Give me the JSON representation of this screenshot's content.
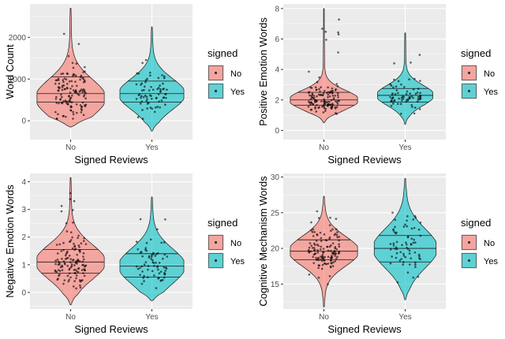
{
  "colors": {
    "panel_bg": "#ebebeb",
    "grid_major": "#ffffff",
    "no_fill": "#f8766d",
    "yes_fill": "#00bfc4",
    "outline": "#1a1a1a",
    "point": "#000000",
    "axis_text": "#4d4d4d",
    "title_text": "#000000"
  },
  "chart_data": [
    {
      "type": "violin",
      "panel": "top-left",
      "xlabel": "Signed Reviews",
      "ylabel": "Word Count",
      "categories": [
        "No",
        "Yes"
      ],
      "ylim": [
        -450,
        2800
      ],
      "yticks": [
        0,
        1000,
        2000
      ],
      "legend": {
        "title": "signed",
        "entries": [
          "No",
          "Yes"
        ]
      },
      "series": [
        {
          "name": "No",
          "min": -150,
          "max": 2700,
          "quantiles": [
            450,
            650,
            1050
          ],
          "mode": 550,
          "width": 1.0,
          "n": 130,
          "seed": 11,
          "jitter_min": 50,
          "jitter_max": 2300
        },
        {
          "name": "Yes",
          "min": -250,
          "max": 2250,
          "quantiles": [
            450,
            650,
            950
          ],
          "mode": 640,
          "width": 0.95,
          "n": 70,
          "seed": 12,
          "jitter_min": 0,
          "jitter_max": 1700
        }
      ]
    },
    {
      "type": "violin",
      "panel": "top-right",
      "xlabel": "Signed Reviews",
      "ylabel": "Positive Emotion Words",
      "categories": [
        "No",
        "Yes"
      ],
      "ylim": [
        -0.6,
        8.3
      ],
      "yticks": [
        0,
        2,
        4,
        6,
        8
      ],
      "legend": {
        "title": "signed",
        "entries": [
          "No",
          "Yes"
        ]
      },
      "series": [
        {
          "name": "No",
          "min": 0.5,
          "max": 8.0,
          "quantiles": [
            1.65,
            2.0,
            2.5
          ],
          "mode": 2.0,
          "width": 1.0,
          "n": 130,
          "seed": 21,
          "jitter_min": 0.8,
          "jitter_max": 7.4
        },
        {
          "name": "Yes",
          "min": 0.4,
          "max": 6.4,
          "quantiles": [
            1.85,
            2.3,
            2.75
          ],
          "mode": 2.3,
          "width": 0.82,
          "n": 70,
          "seed": 22,
          "jitter_min": 0.8,
          "jitter_max": 5.6
        }
      ]
    },
    {
      "type": "violin",
      "panel": "bottom-left",
      "xlabel": "Signed Reviews",
      "ylabel": "Negative Emotion Words",
      "categories": [
        "No",
        "Yes"
      ],
      "ylim": [
        -0.6,
        4.3
      ],
      "yticks": [
        0,
        1,
        2,
        3,
        4
      ],
      "legend": {
        "title": "signed",
        "entries": [
          "No",
          "Yes"
        ]
      },
      "series": [
        {
          "name": "No",
          "min": -0.45,
          "max": 4.15,
          "quantiles": [
            0.7,
            1.1,
            1.55
          ],
          "mode": 1.1,
          "width": 1.0,
          "n": 130,
          "seed": 31,
          "jitter_min": 0.0,
          "jitter_max": 3.6
        },
        {
          "name": "Yes",
          "min": -0.3,
          "max": 3.45,
          "quantiles": [
            0.55,
            0.95,
            1.4
          ],
          "mode": 0.95,
          "width": 0.95,
          "n": 70,
          "seed": 32,
          "jitter_min": 0.1,
          "jitter_max": 2.7
        }
      ]
    },
    {
      "type": "violin",
      "panel": "bottom-right",
      "xlabel": "Signed Reviews",
      "ylabel": "Cognitive Mechanism Words",
      "categories": [
        "No",
        "Yes"
      ],
      "ylim": [
        11.5,
        30.5
      ],
      "yticks": [
        15,
        20,
        25,
        30
      ],
      "legend": {
        "title": "signed",
        "entries": [
          "No",
          "Yes"
        ]
      },
      "series": [
        {
          "name": "No",
          "min": 11.8,
          "max": 27.3,
          "quantiles": [
            18.4,
            19.6,
            21.2
          ],
          "mode": 19.6,
          "width": 1.0,
          "n": 130,
          "seed": 41,
          "jitter_min": 14.5,
          "jitter_max": 25.5
        },
        {
          "name": "Yes",
          "min": 12.8,
          "max": 29.8,
          "quantiles": [
            18.1,
            20.0,
            21.8
          ],
          "mode": 20.0,
          "width": 0.92,
          "n": 70,
          "seed": 42,
          "jitter_min": 15.0,
          "jitter_max": 25.0
        }
      ]
    }
  ]
}
